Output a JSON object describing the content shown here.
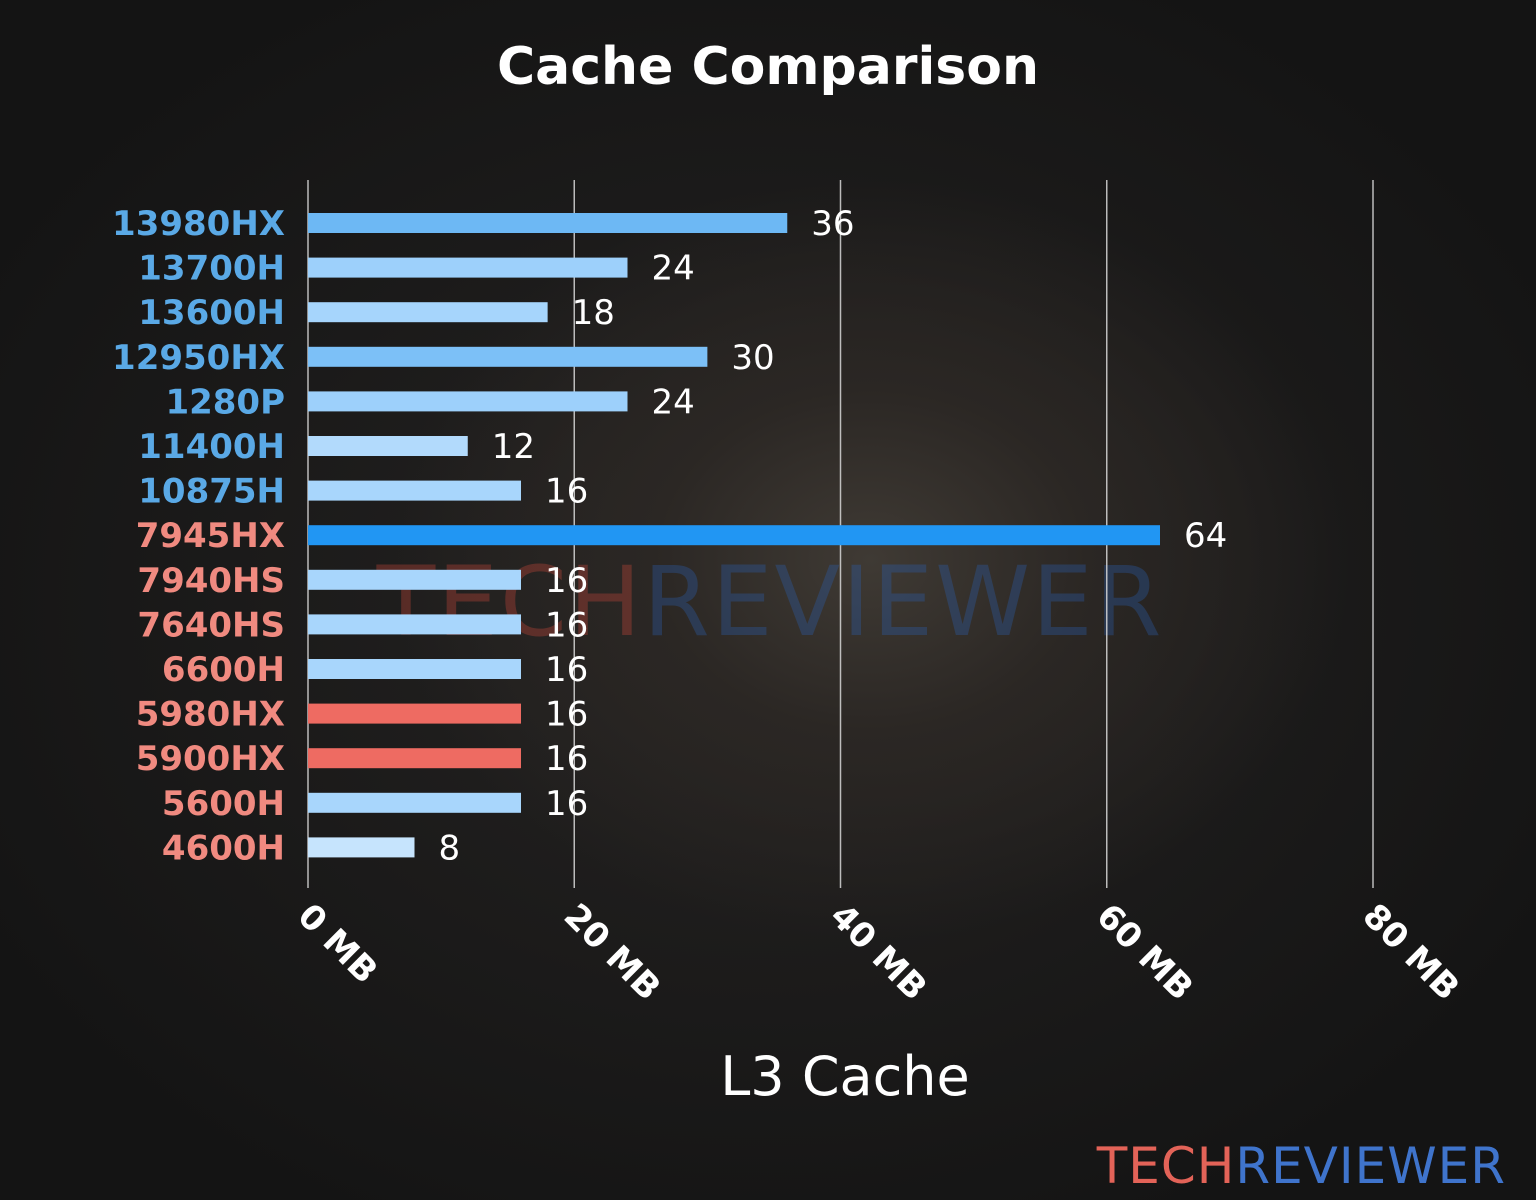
{
  "chart_data": {
    "type": "bar",
    "orientation": "horizontal",
    "title": "Cache Comparison",
    "xlabel": "L3 Cache",
    "ylabel": "",
    "xlim": [
      0,
      80
    ],
    "ticks": [
      {
        "value": 0,
        "label": "0 MB"
      },
      {
        "value": 20,
        "label": "20 MB"
      },
      {
        "value": 40,
        "label": "40 MB"
      },
      {
        "value": 60,
        "label": "60 MB"
      },
      {
        "value": 80,
        "label": "80 MB"
      }
    ],
    "grid": true,
    "categories": [
      "13980HX",
      "13700H",
      "13600H",
      "12950HX",
      "1280P",
      "11400H",
      "10875H",
      "7945HX",
      "7940HS",
      "7640HS",
      "6600H",
      "5980HX",
      "5900HX",
      "5600H",
      "4600H"
    ],
    "values": [
      36,
      24,
      18,
      30,
      24,
      12,
      16,
      64,
      16,
      16,
      16,
      16,
      16,
      16,
      8
    ],
    "value_labels": [
      "36",
      "24",
      "18",
      "30",
      "24",
      "12",
      "16",
      "64",
      "16",
      "16",
      "16",
      "16",
      "16",
      "16",
      "8"
    ],
    "label_colors": [
      "#5aa9e6",
      "#5aa9e6",
      "#5aa9e6",
      "#5aa9e6",
      "#5aa9e6",
      "#5aa9e6",
      "#5aa9e6",
      "#f08a80",
      "#f08a80",
      "#f08a80",
      "#f08a80",
      "#f08a80",
      "#f08a80",
      "#f08a80",
      "#f08a80"
    ],
    "bar_colors": [
      "#6db8f4",
      "#9dd0fb",
      "#a6d5fc",
      "#7cc0f7",
      "#9dd0fb",
      "#b2dafc",
      "#a8d6fc",
      "#2196f3",
      "#a8d6fc",
      "#a8d6fc",
      "#a8d6fc",
      "#ee6b62",
      "#ee6b62",
      "#a8d6fc",
      "#c6e4fd"
    ]
  },
  "watermark": {
    "part1": "TECH",
    "part2": "REVIEWER",
    "color1": "#d24a3c",
    "color2": "#2b61b5"
  },
  "brand": {
    "part1": "TECH",
    "part2": "REVIEWER",
    "color1": "#e36358",
    "color2": "#3f74cc"
  }
}
